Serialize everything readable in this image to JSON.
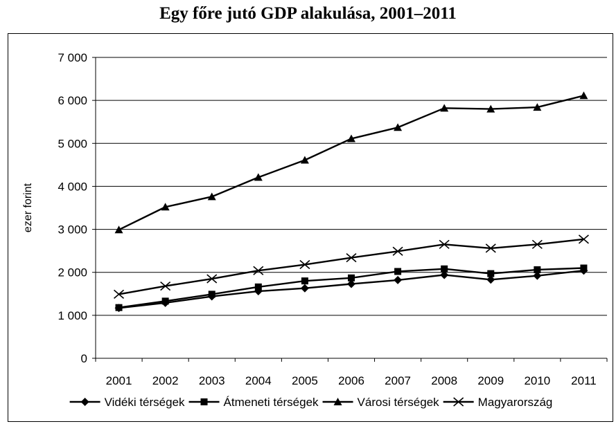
{
  "chart_data": {
    "type": "line",
    "title": "Egy főre jutó GDP alakulása, 2001–2011",
    "xlabel": "",
    "ylabel": "ezer forint",
    "categories": [
      "2001",
      "2002",
      "2003",
      "2004",
      "2005",
      "2006",
      "2007",
      "2008",
      "2009",
      "2010",
      "2011"
    ],
    "ylim": [
      0,
      7000
    ],
    "yticks": [
      0,
      1000,
      2000,
      3000,
      4000,
      5000,
      6000,
      7000
    ],
    "ytick_labels": [
      "0",
      "1 000",
      "2 000",
      "3 000",
      "4 000",
      "5 000",
      "6 000",
      "7 000"
    ],
    "grid": "horizontal",
    "legend_position": "bottom",
    "series": [
      {
        "name": "Vidéki térségek",
        "marker": "diamond",
        "color": "#000000",
        "values": [
          1170,
          1290,
          1440,
          1560,
          1630,
          1730,
          1820,
          1940,
          1830,
          1920,
          2040
        ]
      },
      {
        "name": "Átmeneti térségek",
        "marker": "square",
        "color": "#000000",
        "values": [
          1180,
          1330,
          1490,
          1660,
          1800,
          1870,
          2020,
          2080,
          1970,
          2060,
          2100
        ]
      },
      {
        "name": "Városi térségek",
        "marker": "triangle",
        "color": "#000000",
        "values": [
          2990,
          3520,
          3760,
          4210,
          4610,
          5110,
          5370,
          5820,
          5800,
          5840,
          6110
        ]
      },
      {
        "name": "Magyarország",
        "marker": "x",
        "color": "#000000",
        "values": [
          1490,
          1680,
          1850,
          2040,
          2180,
          2340,
          2490,
          2650,
          2560,
          2650,
          2770
        ]
      }
    ]
  }
}
